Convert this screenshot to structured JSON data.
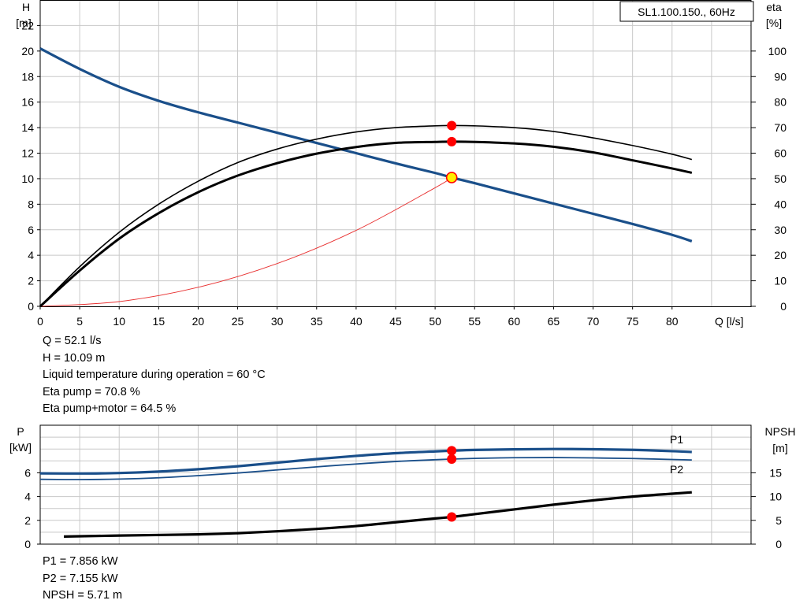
{
  "chart_data": [
    {
      "type": "line",
      "title": "SL1.100.150., 60Hz",
      "xlabel": "Q [l/s]",
      "ylabel_left": [
        "H",
        "[m]"
      ],
      "ylabel_right": [
        "eta",
        "[%]"
      ],
      "xlim": [
        0,
        90
      ],
      "xticks": [
        0,
        5,
        10,
        15,
        20,
        25,
        30,
        35,
        40,
        45,
        50,
        55,
        60,
        65,
        70,
        75,
        80
      ],
      "ylim_left": [
        0,
        24
      ],
      "yticks_left": [
        0,
        2,
        4,
        6,
        8,
        10,
        12,
        14,
        16,
        18,
        20,
        22
      ],
      "ylim_right": [
        0,
        120
      ],
      "yticks_right": [
        0,
        10,
        20,
        30,
        40,
        50,
        60,
        70,
        80,
        90,
        100
      ],
      "grid": true,
      "colors": {
        "head": "#1a4f8a",
        "system": "#e83030",
        "eta": "#000000",
        "marker": "#ff0000",
        "duty_point": "#ffee00"
      },
      "series": [
        {
          "axis": "left",
          "x": [
            0,
            5,
            10,
            15,
            20,
            25,
            30,
            35,
            40,
            45,
            50,
            52.1,
            55,
            60,
            65,
            70,
            75,
            80,
            82.5
          ],
          "y": [
            20.2,
            18.6,
            17.2,
            16.1,
            15.2,
            14.4,
            13.6,
            12.8,
            12.0,
            11.2,
            10.45,
            10.09,
            9.65,
            8.85,
            8.05,
            7.25,
            6.45,
            5.6,
            5.1
          ]
        },
        {
          "axis": "left",
          "x": [
            0,
            10,
            20,
            30,
            40,
            50,
            52.1
          ],
          "y": [
            0,
            0.37,
            1.49,
            3.35,
            5.95,
            9.29,
            10.09
          ]
        },
        {
          "axis": "right",
          "x": [
            0,
            5,
            10,
            15,
            20,
            25,
            30,
            35,
            40,
            45,
            50,
            52.1,
            55,
            60,
            65,
            70,
            75,
            80,
            82.5
          ],
          "y": [
            0,
            15.5,
            29,
            40,
            49,
            56.3,
            61.6,
            65.5,
            68.3,
            70.0,
            70.7,
            70.8,
            70.7,
            70.0,
            68.5,
            66.0,
            63.0,
            59.6,
            57.5
          ]
        },
        {
          "axis": "right",
          "x": [
            0,
            5,
            10,
            15,
            20,
            25,
            30,
            35,
            40,
            45,
            50,
            52.1,
            55,
            60,
            65,
            70,
            75,
            80,
            82.5
          ],
          "y": [
            0,
            14,
            26.5,
            36.5,
            44.7,
            51.2,
            56.1,
            59.8,
            62.4,
            64.0,
            64.4,
            64.5,
            64.4,
            63.8,
            62.5,
            60.3,
            57.2,
            54.0,
            52.3
          ]
        }
      ],
      "markers": [
        {
          "x": 52.1,
          "y": 10.09,
          "axis": "left",
          "duty_point": true
        },
        {
          "x": 52.1,
          "y": 70.8,
          "axis": "right"
        },
        {
          "x": 52.1,
          "y": 64.5,
          "axis": "right"
        }
      ],
      "readout": [
        "Q = 52.1 l/s",
        "H = 10.09 m",
        "Liquid temperature during operation = 60 °C",
        "Eta pump = 70.8 %",
        "Eta pump+motor = 64.5 %"
      ]
    },
    {
      "type": "line",
      "ylabel_left": [
        "P",
        "[kW]"
      ],
      "ylabel_right": [
        "NPSH",
        "[m]"
      ],
      "xlim": [
        0,
        90
      ],
      "ylim_left": [
        0,
        10
      ],
      "yticks_left": [
        0,
        2,
        4,
        6
      ],
      "ylim_right": [
        0,
        25
      ],
      "yticks_right": [
        0,
        5,
        10,
        15
      ],
      "grid": true,
      "colors": {
        "power": "#1a4f8a",
        "npsh": "#000000",
        "marker": "#ff0000"
      },
      "series": [
        {
          "name": "P1",
          "axis": "left",
          "x": [
            0,
            5,
            10,
            15,
            20,
            25,
            30,
            35,
            40,
            45,
            50,
            52.1,
            55,
            60,
            65,
            70,
            75,
            80,
            82.5
          ],
          "y": [
            5.95,
            5.94,
            5.98,
            6.1,
            6.3,
            6.55,
            6.85,
            7.15,
            7.42,
            7.65,
            7.8,
            7.856,
            7.92,
            7.97,
            8.0,
            7.98,
            7.93,
            7.82,
            7.75
          ]
        },
        {
          "name": "P2",
          "axis": "left",
          "x": [
            0,
            5,
            10,
            15,
            20,
            25,
            30,
            35,
            40,
            45,
            50,
            52.1,
            55,
            60,
            65,
            70,
            75,
            80,
            82.5
          ],
          "y": [
            5.45,
            5.43,
            5.47,
            5.58,
            5.76,
            5.98,
            6.24,
            6.5,
            6.74,
            6.95,
            7.1,
            7.155,
            7.21,
            7.27,
            7.28,
            7.25,
            7.2,
            7.12,
            7.08
          ]
        },
        {
          "axis": "right",
          "x": [
            3,
            10,
            20,
            25,
            30,
            35,
            40,
            45,
            50,
            52.1,
            55,
            60,
            65,
            70,
            75,
            80,
            82.5
          ],
          "y": [
            1.6,
            1.8,
            2.05,
            2.3,
            2.7,
            3.2,
            3.8,
            4.6,
            5.4,
            5.71,
            6.3,
            7.3,
            8.3,
            9.2,
            10.0,
            10.6,
            10.9
          ]
        }
      ],
      "markers": [
        {
          "x": 52.1,
          "y": 7.856,
          "axis": "left"
        },
        {
          "x": 52.1,
          "y": 7.155,
          "axis": "left"
        },
        {
          "x": 52.1,
          "y": 5.71,
          "axis": "right"
        }
      ],
      "readout": [
        "P1 = 7.856 kW",
        "P2 = 7.155 kW",
        "NPSH = 5.71 m"
      ]
    }
  ]
}
